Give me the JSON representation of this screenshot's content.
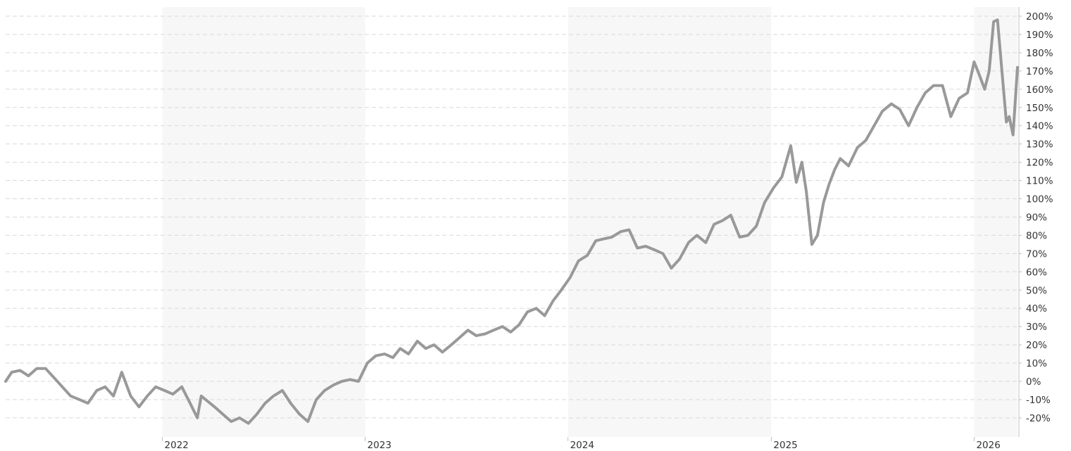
{
  "colors": {
    "line": "#999999",
    "band": "#f7f7f7",
    "grid": "#d9d9d9",
    "text": "#333333"
  },
  "chart_data": {
    "type": "line",
    "title": "",
    "xlabel": "",
    "ylabel": "",
    "y_unit": "%",
    "ylim": [
      -25,
      202
    ],
    "xlim": [
      "2021-03-25",
      "2026-03-20"
    ],
    "y_ticks": [
      -20,
      -10,
      0,
      10,
      20,
      30,
      40,
      50,
      60,
      70,
      80,
      90,
      100,
      110,
      120,
      130,
      140,
      150,
      160,
      170,
      180,
      190,
      200
    ],
    "y_tick_labels": [
      "-20%",
      "-10%",
      "0%",
      "10%",
      "20%",
      "30%",
      "40%",
      "50%",
      "60%",
      "70%",
      "80%",
      "90%",
      "100%",
      "110%",
      "120%",
      "130%",
      "140%",
      "150%",
      "160%",
      "170%",
      "180%",
      "190%",
      "200%"
    ],
    "x_ticks": [
      "2022-01-01",
      "2023-01-01",
      "2024-01-01",
      "2025-01-01",
      "2026-01-01"
    ],
    "x_tick_labels": [
      "2022",
      "2023",
      "2024",
      "2025",
      "2026"
    ],
    "shaded_years": [
      [
        "2022-01-01",
        "2023-01-01"
      ],
      [
        "2024-01-01",
        "2025-01-01"
      ],
      [
        "2026-01-01",
        "2026-03-20"
      ]
    ],
    "grid": true,
    "legend": "none",
    "series": [
      {
        "x": [
          "2021-03-25",
          "2021-04-05",
          "2021-04-20",
          "2021-05-05",
          "2021-05-20",
          "2021-06-05",
          "2021-06-20",
          "2021-07-05",
          "2021-07-20",
          "2021-08-05",
          "2021-08-20",
          "2021-09-05",
          "2021-09-20",
          "2021-10-05",
          "2021-10-20",
          "2021-11-05",
          "2021-11-20",
          "2021-12-05",
          "2021-12-20",
          "2022-01-05",
          "2022-01-20",
          "2022-02-05",
          "2022-02-20",
          "2022-03-05",
          "2022-03-12",
          "2022-03-20",
          "2022-04-05",
          "2022-04-20",
          "2022-05-05",
          "2022-05-20",
          "2022-06-05",
          "2022-06-20",
          "2022-07-05",
          "2022-07-20",
          "2022-08-05",
          "2022-08-20",
          "2022-09-05",
          "2022-09-20",
          "2022-10-05",
          "2022-10-20",
          "2022-11-05",
          "2022-11-20",
          "2022-12-05",
          "2022-12-20",
          "2023-01-05",
          "2023-01-20",
          "2023-02-05",
          "2023-02-20",
          "2023-03-05",
          "2023-03-20",
          "2023-04-05",
          "2023-04-20",
          "2023-05-05",
          "2023-05-20",
          "2023-06-05",
          "2023-06-20",
          "2023-07-05",
          "2023-07-20",
          "2023-08-05",
          "2023-08-20",
          "2023-09-05",
          "2023-09-20",
          "2023-10-05",
          "2023-10-20",
          "2023-11-05",
          "2023-11-20",
          "2023-12-05",
          "2023-12-20",
          "2024-01-05",
          "2024-01-20",
          "2024-02-05",
          "2024-02-20",
          "2024-03-05",
          "2024-03-20",
          "2024-04-05",
          "2024-04-20",
          "2024-05-05",
          "2024-05-20",
          "2024-06-05",
          "2024-06-20",
          "2024-07-05",
          "2024-07-20",
          "2024-08-05",
          "2024-08-20",
          "2024-09-05",
          "2024-09-20",
          "2024-10-05",
          "2024-10-20",
          "2024-11-05",
          "2024-11-20",
          "2024-12-05",
          "2024-12-20",
          "2025-01-05",
          "2025-01-20",
          "2025-02-05",
          "2025-02-15",
          "2025-02-25",
          "2025-03-05",
          "2025-03-15",
          "2025-03-25",
          "2025-04-05",
          "2025-04-15",
          "2025-04-25",
          "2025-05-05",
          "2025-05-20",
          "2025-06-05",
          "2025-06-20",
          "2025-07-05",
          "2025-07-20",
          "2025-08-05",
          "2025-08-20",
          "2025-09-05",
          "2025-09-20",
          "2025-10-05",
          "2025-10-20",
          "2025-11-05",
          "2025-11-20",
          "2025-12-05",
          "2025-12-20",
          "2026-01-01",
          "2026-01-10",
          "2026-01-20",
          "2026-01-28",
          "2026-02-05",
          "2026-02-12",
          "2026-02-20",
          "2026-02-28",
          "2026-03-05",
          "2026-03-12",
          "2026-03-20"
        ],
        "values": [
          0,
          5,
          6,
          3,
          7,
          7,
          2,
          -3,
          -8,
          -10,
          -12,
          -5,
          -3,
          -8,
          5,
          -8,
          -14,
          -8,
          -3,
          -5,
          -7,
          -3,
          -12,
          -20,
          -8,
          -10,
          -14,
          -18,
          -22,
          -20,
          -23,
          -18,
          -12,
          -8,
          -5,
          -12,
          -18,
          -22,
          -10,
          -5,
          -2,
          0,
          1,
          0,
          10,
          14,
          15,
          13,
          18,
          15,
          22,
          18,
          20,
          16,
          20,
          24,
          28,
          25,
          26,
          28,
          30,
          27,
          31,
          38,
          40,
          36,
          44,
          50,
          57,
          66,
          69,
          77,
          78,
          79,
          82,
          83,
          73,
          74,
          72,
          70,
          62,
          67,
          76,
          80,
          76,
          86,
          88,
          91,
          79,
          80,
          85,
          98,
          106,
          112,
          129,
          109,
          120,
          104,
          75,
          80,
          98,
          108,
          116,
          122,
          118,
          128,
          132,
          140,
          148,
          152,
          149,
          140,
          150,
          158,
          162,
          162,
          145,
          155,
          158,
          175,
          168,
          160,
          170,
          197,
          198,
          170,
          142,
          145,
          135,
          172
        ]
      }
    ]
  }
}
